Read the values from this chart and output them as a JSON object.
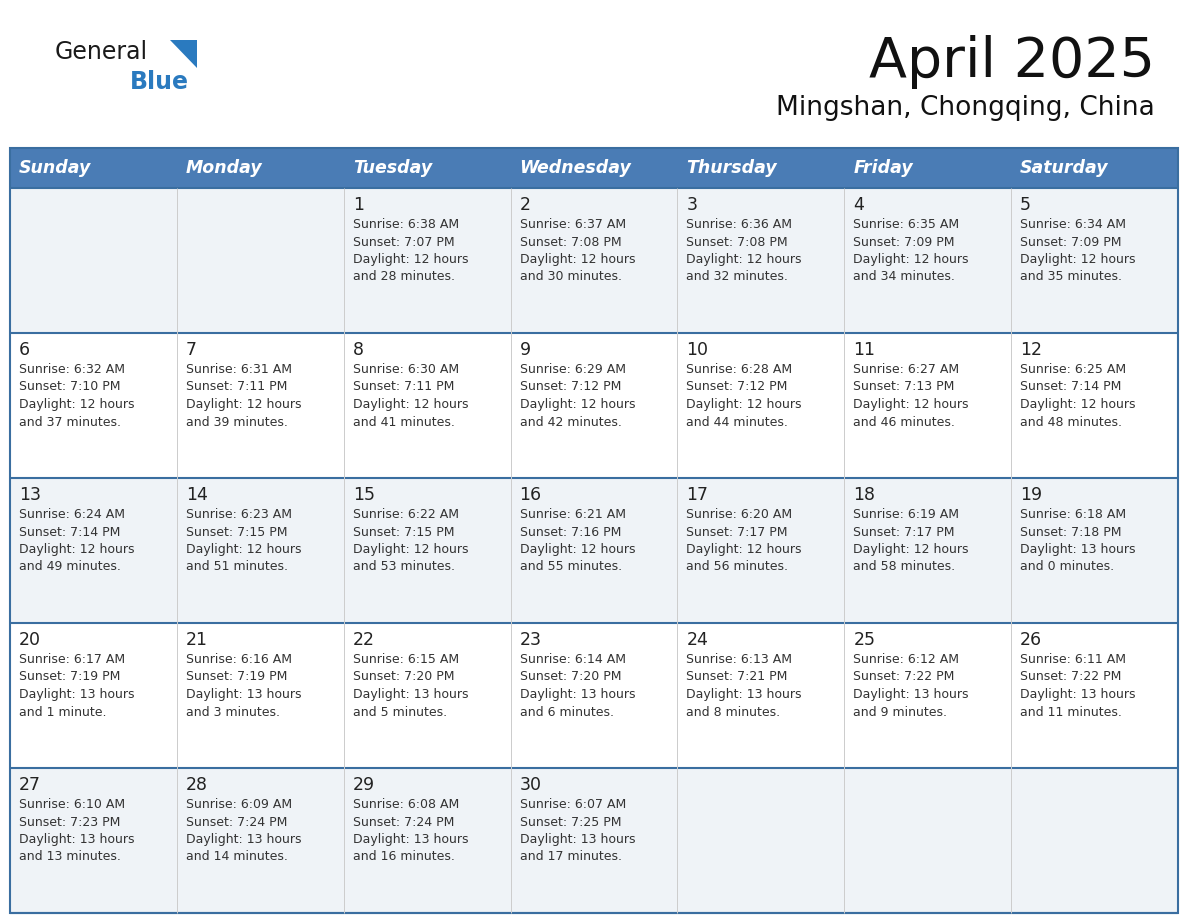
{
  "title": "April 2025",
  "subtitle": "Mingshan, Chongqing, China",
  "days_of_week": [
    "Sunday",
    "Monday",
    "Tuesday",
    "Wednesday",
    "Thursday",
    "Friday",
    "Saturday"
  ],
  "header_bg": "#4a7cb5",
  "header_text": "#ffffff",
  "row_bg_odd": "#eff3f7",
  "row_bg_even": "#ffffff",
  "border_color": "#3a6ea0",
  "cell_text_color": "#333333",
  "logo_general_color": "#1a1a1a",
  "logo_blue_color": "#2a7abf",
  "weeks": [
    {
      "days": [
        {
          "date": null,
          "sunrise": null,
          "sunset": null,
          "daylight": null
        },
        {
          "date": null,
          "sunrise": null,
          "sunset": null,
          "daylight": null
        },
        {
          "date": "1",
          "sunrise": "6:38 AM",
          "sunset": "7:07 PM",
          "daylight": "12 hours and 28 minutes."
        },
        {
          "date": "2",
          "sunrise": "6:37 AM",
          "sunset": "7:08 PM",
          "daylight": "12 hours and 30 minutes."
        },
        {
          "date": "3",
          "sunrise": "6:36 AM",
          "sunset": "7:08 PM",
          "daylight": "12 hours and 32 minutes."
        },
        {
          "date": "4",
          "sunrise": "6:35 AM",
          "sunset": "7:09 PM",
          "daylight": "12 hours and 34 minutes."
        },
        {
          "date": "5",
          "sunrise": "6:34 AM",
          "sunset": "7:09 PM",
          "daylight": "12 hours and 35 minutes."
        }
      ]
    },
    {
      "days": [
        {
          "date": "6",
          "sunrise": "6:32 AM",
          "sunset": "7:10 PM",
          "daylight": "12 hours and 37 minutes."
        },
        {
          "date": "7",
          "sunrise": "6:31 AM",
          "sunset": "7:11 PM",
          "daylight": "12 hours and 39 minutes."
        },
        {
          "date": "8",
          "sunrise": "6:30 AM",
          "sunset": "7:11 PM",
          "daylight": "12 hours and 41 minutes."
        },
        {
          "date": "9",
          "sunrise": "6:29 AM",
          "sunset": "7:12 PM",
          "daylight": "12 hours and 42 minutes."
        },
        {
          "date": "10",
          "sunrise": "6:28 AM",
          "sunset": "7:12 PM",
          "daylight": "12 hours and 44 minutes."
        },
        {
          "date": "11",
          "sunrise": "6:27 AM",
          "sunset": "7:13 PM",
          "daylight": "12 hours and 46 minutes."
        },
        {
          "date": "12",
          "sunrise": "6:25 AM",
          "sunset": "7:14 PM",
          "daylight": "12 hours and 48 minutes."
        }
      ]
    },
    {
      "days": [
        {
          "date": "13",
          "sunrise": "6:24 AM",
          "sunset": "7:14 PM",
          "daylight": "12 hours and 49 minutes."
        },
        {
          "date": "14",
          "sunrise": "6:23 AM",
          "sunset": "7:15 PM",
          "daylight": "12 hours and 51 minutes."
        },
        {
          "date": "15",
          "sunrise": "6:22 AM",
          "sunset": "7:15 PM",
          "daylight": "12 hours and 53 minutes."
        },
        {
          "date": "16",
          "sunrise": "6:21 AM",
          "sunset": "7:16 PM",
          "daylight": "12 hours and 55 minutes."
        },
        {
          "date": "17",
          "sunrise": "6:20 AM",
          "sunset": "7:17 PM",
          "daylight": "12 hours and 56 minutes."
        },
        {
          "date": "18",
          "sunrise": "6:19 AM",
          "sunset": "7:17 PM",
          "daylight": "12 hours and 58 minutes."
        },
        {
          "date": "19",
          "sunrise": "6:18 AM",
          "sunset": "7:18 PM",
          "daylight": "13 hours and 0 minutes."
        }
      ]
    },
    {
      "days": [
        {
          "date": "20",
          "sunrise": "6:17 AM",
          "sunset": "7:19 PM",
          "daylight": "13 hours and 1 minute."
        },
        {
          "date": "21",
          "sunrise": "6:16 AM",
          "sunset": "7:19 PM",
          "daylight": "13 hours and 3 minutes."
        },
        {
          "date": "22",
          "sunrise": "6:15 AM",
          "sunset": "7:20 PM",
          "daylight": "13 hours and 5 minutes."
        },
        {
          "date": "23",
          "sunrise": "6:14 AM",
          "sunset": "7:20 PM",
          "daylight": "13 hours and 6 minutes."
        },
        {
          "date": "24",
          "sunrise": "6:13 AM",
          "sunset": "7:21 PM",
          "daylight": "13 hours and 8 minutes."
        },
        {
          "date": "25",
          "sunrise": "6:12 AM",
          "sunset": "7:22 PM",
          "daylight": "13 hours and 9 minutes."
        },
        {
          "date": "26",
          "sunrise": "6:11 AM",
          "sunset": "7:22 PM",
          "daylight": "13 hours and 11 minutes."
        }
      ]
    },
    {
      "days": [
        {
          "date": "27",
          "sunrise": "6:10 AM",
          "sunset": "7:23 PM",
          "daylight": "13 hours and 13 minutes."
        },
        {
          "date": "28",
          "sunrise": "6:09 AM",
          "sunset": "7:24 PM",
          "daylight": "13 hours and 14 minutes."
        },
        {
          "date": "29",
          "sunrise": "6:08 AM",
          "sunset": "7:24 PM",
          "daylight": "13 hours and 16 minutes."
        },
        {
          "date": "30",
          "sunrise": "6:07 AM",
          "sunset": "7:25 PM",
          "daylight": "13 hours and 17 minutes."
        },
        {
          "date": null,
          "sunrise": null,
          "sunset": null,
          "daylight": null
        },
        {
          "date": null,
          "sunrise": null,
          "sunset": null,
          "daylight": null
        },
        {
          "date": null,
          "sunrise": null,
          "sunset": null,
          "daylight": null
        }
      ]
    }
  ]
}
